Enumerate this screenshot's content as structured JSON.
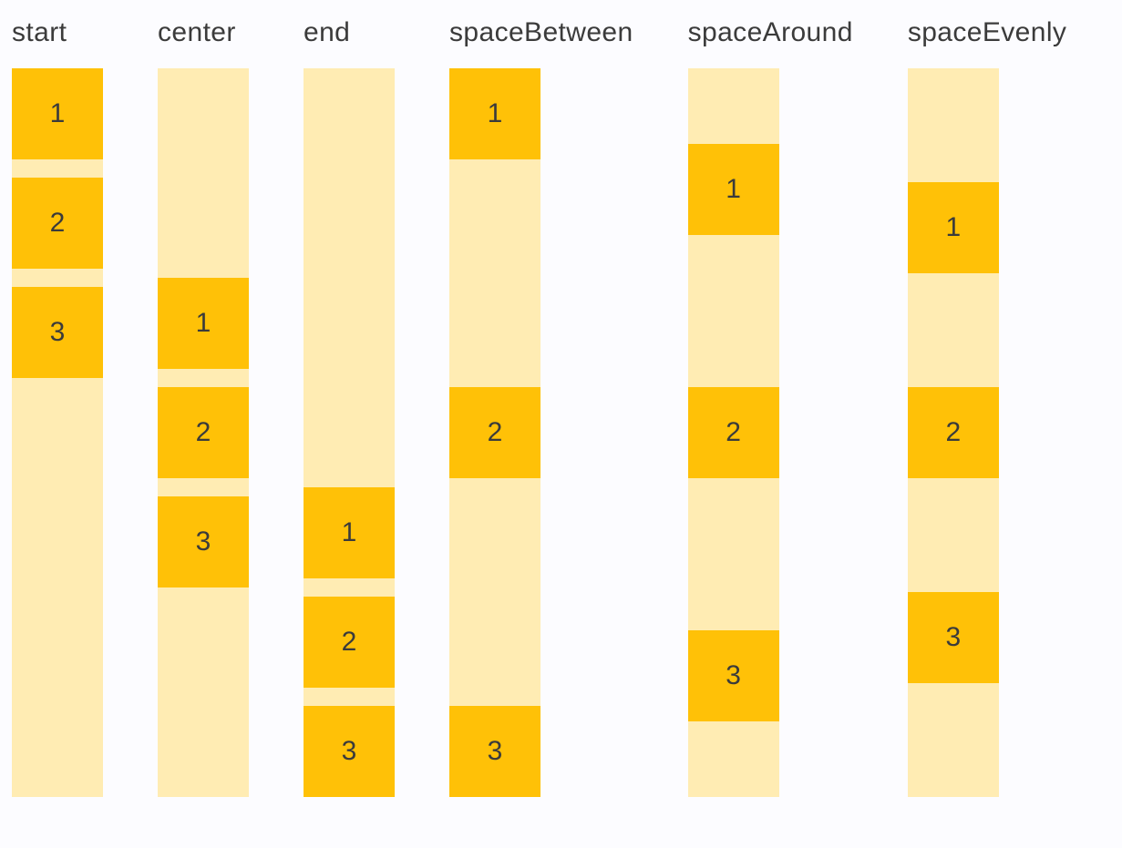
{
  "page": {
    "background_color": "#FCFCFF"
  },
  "colors": {
    "track": "#FFECB3",
    "item_box": "#FFC107",
    "text": "#3B3B3B"
  },
  "columns": [
    {
      "label": "start",
      "items": [
        "1",
        "2",
        "3"
      ]
    },
    {
      "label": "center",
      "items": [
        "1",
        "2",
        "3"
      ]
    },
    {
      "label": "end",
      "items": [
        "1",
        "2",
        "3"
      ]
    },
    {
      "label": "spaceBetween",
      "items": [
        "1",
        "2",
        "3"
      ]
    },
    {
      "label": "spaceAround",
      "items": [
        "1",
        "2",
        "3"
      ]
    },
    {
      "label": "spaceEvenly",
      "items": [
        "1",
        "2",
        "3"
      ]
    }
  ]
}
